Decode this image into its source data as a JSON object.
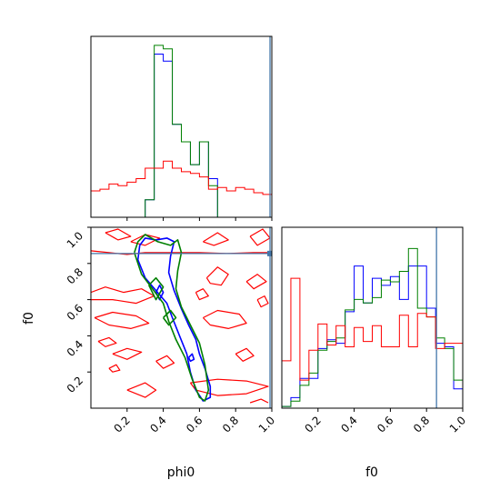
{
  "chart_data": [
    {
      "type": "step-histogram",
      "panel": "phi0 marginal",
      "xlim": [
        0.0,
        1.0
      ],
      "bin_edges": [
        0.0,
        0.05,
        0.1,
        0.15,
        0.2,
        0.25,
        0.3,
        0.35,
        0.4,
        0.45,
        0.5,
        0.55,
        0.6,
        0.65,
        0.7,
        0.75,
        0.8,
        0.85,
        0.9,
        0.95,
        1.0
      ],
      "truth_line": 0.99,
      "series": [
        {
          "color": "#0000ff",
          "values": [
            0,
            0,
            0,
            0,
            0,
            0,
            0.1,
            0.93,
            0.89,
            0.53,
            0.43,
            0.3,
            0.43,
            0.22,
            0,
            0,
            0,
            0,
            0,
            0
          ]
        },
        {
          "color": "#008000",
          "values": [
            0,
            0,
            0,
            0,
            0,
            0,
            0.1,
            0.98,
            0.96,
            0.53,
            0.43,
            0.3,
            0.43,
            0.18,
            0,
            0,
            0,
            0,
            0,
            0
          ]
        },
        {
          "color": "#ff0000",
          "values": [
            0.15,
            0.16,
            0.19,
            0.18,
            0.2,
            0.22,
            0.28,
            0.28,
            0.32,
            0.28,
            0.26,
            0.25,
            0.23,
            0.16,
            0.17,
            0.15,
            0.17,
            0.16,
            0.14,
            0.13
          ]
        }
      ]
    },
    {
      "type": "contour",
      "panel": "f0 vs phi0",
      "xlabel": "phi0",
      "ylabel": "f0",
      "xlim": [
        0.0,
        1.0
      ],
      "ylim": [
        0.0,
        1.0
      ],
      "xticks": [
        "0.2",
        "0.4",
        "0.6",
        "0.8",
        "1.0"
      ],
      "yticks": [
        "0.2",
        "0.4",
        "0.6",
        "0.8",
        "1.0"
      ],
      "truth_x": 0.99,
      "truth_y": 0.855,
      "series": [
        {
          "color": "#ff0000",
          "contours": [
            [
              [
                0.0,
                0.87
              ],
              [
                0.1,
                0.86
              ],
              [
                0.2,
                0.85
              ],
              [
                0.3,
                0.86
              ],
              [
                0.45,
                0.86
              ],
              [
                0.6,
                0.86
              ],
              [
                0.75,
                0.855
              ],
              [
                0.9,
                0.86
              ],
              [
                1.0,
                0.86
              ]
            ],
            [
              [
                0.08,
                0.97
              ],
              [
                0.15,
                0.99
              ],
              [
                0.22,
                0.95
              ],
              [
                0.15,
                0.93
              ],
              [
                0.08,
                0.97
              ]
            ],
            [
              [
                0.22,
                0.92
              ],
              [
                0.3,
                0.96
              ],
              [
                0.38,
                0.94
              ],
              [
                0.3,
                0.9
              ],
              [
                0.22,
                0.92
              ]
            ],
            [
              [
                0.62,
                0.92
              ],
              [
                0.7,
                0.97
              ],
              [
                0.76,
                0.93
              ],
              [
                0.68,
                0.9
              ],
              [
                0.62,
                0.92
              ]
            ],
            [
              [
                0.88,
                0.95
              ],
              [
                0.95,
                0.99
              ],
              [
                0.99,
                0.94
              ],
              [
                0.92,
                0.9
              ],
              [
                0.88,
                0.95
              ]
            ],
            [
              [
                0.0,
                0.64
              ],
              [
                0.08,
                0.67
              ],
              [
                0.18,
                0.64
              ],
              [
                0.28,
                0.66
              ],
              [
                0.35,
                0.62
              ],
              [
                0.25,
                0.58
              ],
              [
                0.12,
                0.6
              ],
              [
                0.0,
                0.6
              ]
            ],
            [
              [
                0.02,
                0.5
              ],
              [
                0.12,
                0.53
              ],
              [
                0.25,
                0.51
              ],
              [
                0.32,
                0.47
              ],
              [
                0.22,
                0.44
              ],
              [
                0.1,
                0.46
              ],
              [
                0.02,
                0.5
              ]
            ],
            [
              [
                0.04,
                0.37
              ],
              [
                0.1,
                0.39
              ],
              [
                0.14,
                0.36
              ],
              [
                0.08,
                0.34
              ],
              [
                0.04,
                0.37
              ]
            ],
            [
              [
                0.12,
                0.3
              ],
              [
                0.2,
                0.33
              ],
              [
                0.28,
                0.31
              ],
              [
                0.2,
                0.27
              ],
              [
                0.12,
                0.3
              ]
            ],
            [
              [
                0.1,
                0.22
              ],
              [
                0.14,
                0.24
              ],
              [
                0.16,
                0.21
              ],
              [
                0.12,
                0.2
              ],
              [
                0.1,
                0.22
              ]
            ],
            [
              [
                0.64,
                0.72
              ],
              [
                0.7,
                0.78
              ],
              [
                0.76,
                0.74
              ],
              [
                0.72,
                0.68
              ],
              [
                0.66,
                0.69
              ],
              [
                0.64,
                0.72
              ]
            ],
            [
              [
                0.62,
                0.5
              ],
              [
                0.7,
                0.54
              ],
              [
                0.82,
                0.52
              ],
              [
                0.86,
                0.47
              ],
              [
                0.76,
                0.44
              ],
              [
                0.66,
                0.46
              ],
              [
                0.62,
                0.5
              ]
            ],
            [
              [
                0.58,
                0.64
              ],
              [
                0.62,
                0.66
              ],
              [
                0.65,
                0.62
              ],
              [
                0.6,
                0.6
              ],
              [
                0.58,
                0.64
              ]
            ],
            [
              [
                0.8,
                0.3
              ],
              [
                0.86,
                0.33
              ],
              [
                0.9,
                0.29
              ],
              [
                0.84,
                0.26
              ],
              [
                0.8,
                0.3
              ]
            ],
            [
              [
                0.92,
                0.6
              ],
              [
                0.96,
                0.62
              ],
              [
                0.98,
                0.58
              ],
              [
                0.94,
                0.56
              ],
              [
                0.92,
                0.6
              ]
            ],
            [
              [
                0.2,
                0.1
              ],
              [
                0.3,
                0.14
              ],
              [
                0.36,
                0.1
              ],
              [
                0.3,
                0.06
              ],
              [
                0.2,
                0.1
              ]
            ],
            [
              [
                0.55,
                0.14
              ],
              [
                0.7,
                0.16
              ],
              [
                0.86,
                0.15
              ],
              [
                0.98,
                0.12
              ],
              [
                0.86,
                0.08
              ],
              [
                0.7,
                0.07
              ],
              [
                0.58,
                0.1
              ],
              [
                0.55,
                0.14
              ]
            ],
            [
              [
                0.86,
                0.7
              ],
              [
                0.92,
                0.74
              ],
              [
                0.97,
                0.7
              ],
              [
                0.9,
                0.66
              ],
              [
                0.86,
                0.7
              ]
            ],
            [
              [
                0.36,
                0.26
              ],
              [
                0.42,
                0.29
              ],
              [
                0.46,
                0.25
              ],
              [
                0.4,
                0.22
              ],
              [
                0.36,
                0.26
              ]
            ],
            [
              [
                0.88,
                0.03
              ],
              [
                0.94,
                0.05
              ],
              [
                0.98,
                0.03
              ]
            ]
          ]
        },
        {
          "color": "#0000ff",
          "contours": [
            [
              [
                0.27,
                0.9
              ],
              [
                0.3,
                0.94
              ],
              [
                0.36,
                0.93
              ],
              [
                0.42,
                0.94
              ],
              [
                0.46,
                0.92
              ],
              [
                0.44,
                0.84
              ],
              [
                0.43,
                0.75
              ],
              [
                0.46,
                0.65
              ],
              [
                0.5,
                0.55
              ],
              [
                0.54,
                0.46
              ],
              [
                0.58,
                0.38
              ],
              [
                0.6,
                0.3
              ],
              [
                0.63,
                0.22
              ],
              [
                0.66,
                0.12
              ],
              [
                0.66,
                0.06
              ],
              [
                0.62,
                0.04
              ],
              [
                0.58,
                0.1
              ],
              [
                0.55,
                0.2
              ],
              [
                0.53,
                0.3
              ],
              [
                0.49,
                0.4
              ],
              [
                0.45,
                0.5
              ],
              [
                0.42,
                0.58
              ],
              [
                0.36,
                0.65
              ],
              [
                0.3,
                0.72
              ],
              [
                0.26,
                0.82
              ],
              [
                0.27,
                0.9
              ]
            ],
            [
              [
                0.36,
                0.64
              ],
              [
                0.38,
                0.68
              ],
              [
                0.4,
                0.64
              ],
              [
                0.38,
                0.6
              ],
              [
                0.36,
                0.64
              ]
            ],
            [
              [
                0.54,
                0.28
              ],
              [
                0.56,
                0.3
              ],
              [
                0.57,
                0.27
              ],
              [
                0.55,
                0.26
              ],
              [
                0.54,
                0.28
              ]
            ]
          ]
        },
        {
          "color": "#008000",
          "contours": [
            [
              [
                0.24,
                0.86
              ],
              [
                0.26,
                0.92
              ],
              [
                0.3,
                0.96
              ],
              [
                0.37,
                0.92
              ],
              [
                0.44,
                0.9
              ],
              [
                0.48,
                0.93
              ],
              [
                0.5,
                0.86
              ],
              [
                0.48,
                0.76
              ],
              [
                0.47,
                0.66
              ],
              [
                0.5,
                0.56
              ],
              [
                0.55,
                0.46
              ],
              [
                0.6,
                0.36
              ],
              [
                0.63,
                0.24
              ],
              [
                0.65,
                0.1
              ],
              [
                0.63,
                0.04
              ],
              [
                0.6,
                0.06
              ],
              [
                0.56,
                0.16
              ],
              [
                0.52,
                0.28
              ],
              [
                0.47,
                0.38
              ],
              [
                0.43,
                0.48
              ],
              [
                0.4,
                0.58
              ],
              [
                0.34,
                0.66
              ],
              [
                0.28,
                0.74
              ],
              [
                0.24,
                0.86
              ]
            ],
            [
              [
                0.32,
                0.68
              ],
              [
                0.36,
                0.72
              ],
              [
                0.4,
                0.67
              ],
              [
                0.36,
                0.6
              ],
              [
                0.32,
                0.68
              ]
            ],
            [
              [
                0.4,
                0.5
              ],
              [
                0.44,
                0.54
              ],
              [
                0.47,
                0.5
              ],
              [
                0.43,
                0.46
              ],
              [
                0.4,
                0.5
              ]
            ]
          ]
        }
      ]
    },
    {
      "type": "step-histogram",
      "panel": "f0 marginal",
      "xlabel": "f0",
      "xlim": [
        0.0,
        1.0
      ],
      "xticks": [
        "0.2",
        "0.4",
        "0.6",
        "0.8",
        "1.0"
      ],
      "bin_edges": [
        0.0,
        0.05,
        0.1,
        0.15,
        0.2,
        0.25,
        0.3,
        0.35,
        0.4,
        0.45,
        0.5,
        0.55,
        0.6,
        0.65,
        0.7,
        0.75,
        0.8,
        0.85,
        0.9,
        0.95,
        1.0
      ],
      "truth_line": 0.855,
      "series": [
        {
          "color": "#0000ff",
          "values": [
            0.01,
            0.06,
            0.17,
            0.17,
            0.34,
            0.39,
            0.37,
            0.55,
            0.81,
            0.6,
            0.74,
            0.7,
            0.75,
            0.62,
            0.81,
            0.81,
            0.57,
            0.37,
            0.35,
            0.11
          ]
        },
        {
          "color": "#008000",
          "values": [
            0.01,
            0.04,
            0.13,
            0.2,
            0.33,
            0.38,
            0.4,
            0.56,
            0.62,
            0.6,
            0.63,
            0.73,
            0.72,
            0.78,
            0.91,
            0.57,
            0.52,
            0.4,
            0.34,
            0.16
          ]
        },
        {
          "color": "#ff0000",
          "values": [
            0.27,
            0.74,
            0.16,
            0.33,
            0.48,
            0.36,
            0.47,
            0.35,
            0.46,
            0.38,
            0.47,
            0.35,
            0.35,
            0.53,
            0.35,
            0.54,
            0.52,
            0.34,
            0.37,
            0.37
          ]
        }
      ]
    }
  ]
}
